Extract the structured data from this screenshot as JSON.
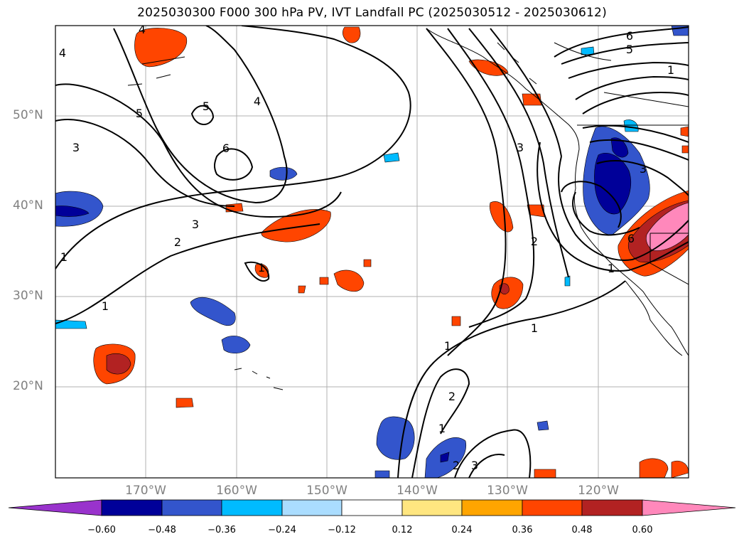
{
  "title": "2025030300 F000 300 hPa PV, IVT Landfall PC (2025030512 - 2025030612)",
  "lat_labels": [
    "50°N",
    "40°N",
    "30°N",
    "20°N"
  ],
  "lon_labels": [
    "170°W",
    "160°W",
    "150°W",
    "140°W",
    "130°W",
    "120°W"
  ],
  "colorbar": {
    "ticks": [
      "−0.60",
      "−0.48",
      "−0.36",
      "−0.24",
      "−0.12",
      "0.12",
      "0.24",
      "0.36",
      "0.48",
      "0.60"
    ],
    "colors": [
      "#9933cc",
      "#000099",
      "#3355cc",
      "#00bbff",
      "#aaddff",
      "#ffffff",
      "#ffe680",
      "#ffa500",
      "#ff4500",
      "#b22222",
      "#ff88bb"
    ]
  },
  "contour_labels": [
    "1",
    "2",
    "3",
    "4",
    "5",
    "6"
  ]
}
